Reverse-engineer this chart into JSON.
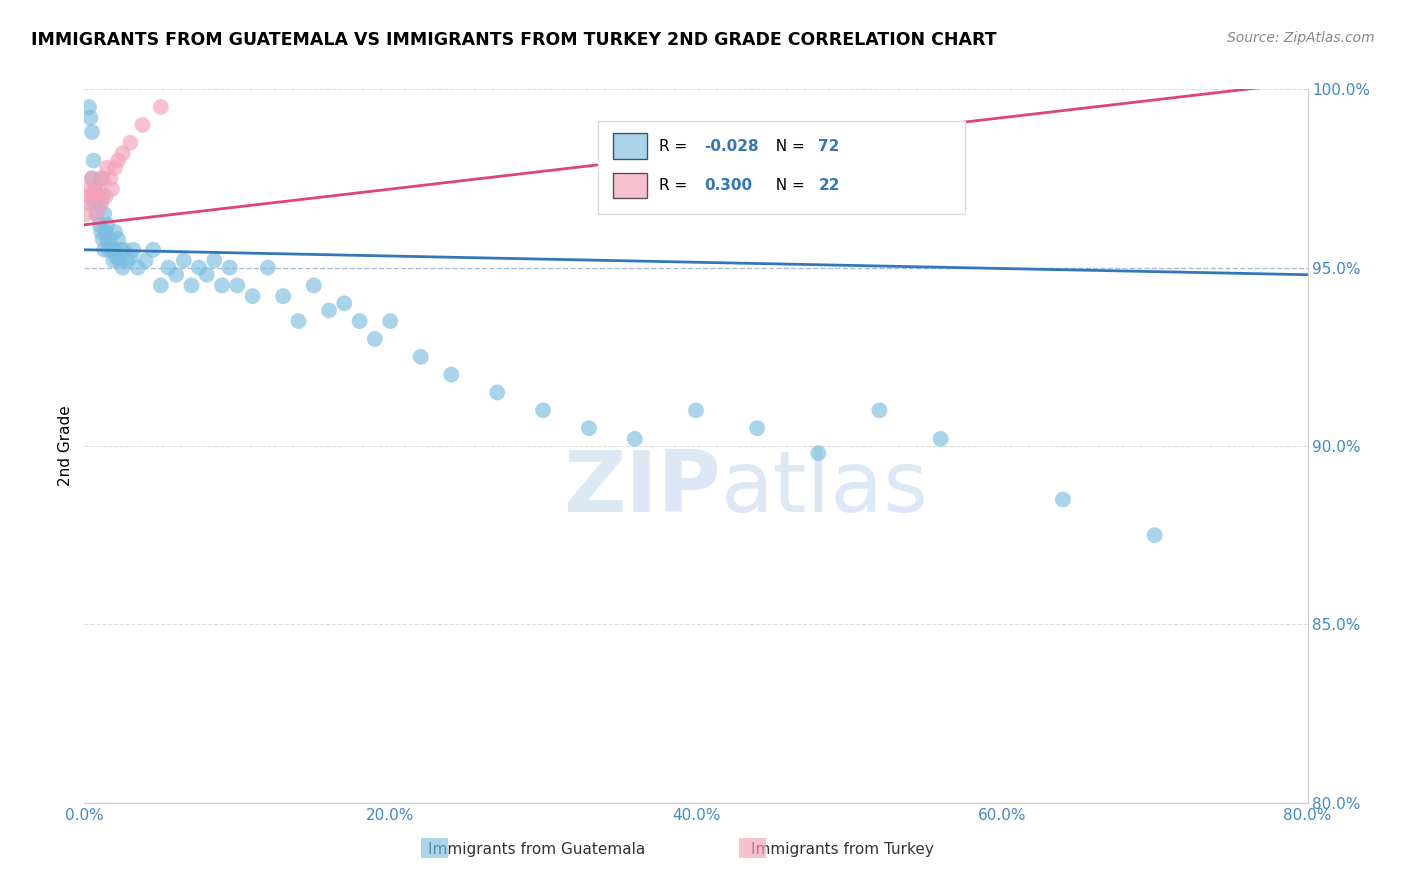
{
  "title": "IMMIGRANTS FROM GUATEMALA VS IMMIGRANTS FROM TURKEY 2ND GRADE CORRELATION CHART",
  "source": "Source: ZipAtlas.com",
  "ylabel": "2nd Grade",
  "xlim": [
    0.0,
    80.0
  ],
  "ylim": [
    80.0,
    100.0
  ],
  "xticks": [
    0.0,
    20.0,
    40.0,
    60.0,
    80.0
  ],
  "yticks": [
    80.0,
    85.0,
    90.0,
    95.0,
    100.0
  ],
  "guatemala_R": -0.028,
  "guatemala_N": 72,
  "turkey_R": 0.3,
  "turkey_N": 22,
  "guatemala_color": "#7bbde0",
  "turkey_color": "#f4a0b8",
  "guatemala_line_color": "#3377bb",
  "turkey_line_color": "#dd4477",
  "watermark_color": "#dde8f5",
  "legend_border_color": "#dddddd",
  "grid_color_95": "#aabbdd",
  "grid_color_other": "#dddddd",
  "guatemala_x": [
    0.3,
    0.4,
    0.5,
    0.5,
    0.6,
    0.6,
    0.7,
    0.8,
    0.9,
    1.0,
    1.0,
    1.1,
    1.1,
    1.2,
    1.2,
    1.3,
    1.3,
    1.4,
    1.5,
    1.5,
    1.6,
    1.7,
    1.8,
    1.9,
    2.0,
    2.0,
    2.1,
    2.2,
    2.3,
    2.4,
    2.5,
    2.6,
    2.8,
    3.0,
    3.2,
    3.5,
    4.0,
    4.5,
    5.0,
    5.5,
    6.0,
    6.5,
    7.0,
    7.5,
    8.0,
    8.5,
    9.0,
    9.5,
    10.0,
    11.0,
    12.0,
    13.0,
    14.0,
    15.0,
    16.0,
    17.0,
    18.0,
    19.0,
    20.0,
    22.0,
    24.0,
    27.0,
    30.0,
    33.0,
    36.0,
    40.0,
    44.0,
    48.0,
    52.0,
    56.0,
    64.0,
    70.0
  ],
  "guatemala_y": [
    99.5,
    99.2,
    98.8,
    97.5,
    98.0,
    96.8,
    97.2,
    96.5,
    97.0,
    96.8,
    96.2,
    97.5,
    96.0,
    95.8,
    97.0,
    96.5,
    95.5,
    96.0,
    95.8,
    96.2,
    95.5,
    95.8,
    95.5,
    95.2,
    95.5,
    96.0,
    95.3,
    95.8,
    95.2,
    95.5,
    95.0,
    95.5,
    95.2,
    95.3,
    95.5,
    95.0,
    95.2,
    95.5,
    94.5,
    95.0,
    94.8,
    95.2,
    94.5,
    95.0,
    94.8,
    95.2,
    94.5,
    95.0,
    94.5,
    94.2,
    95.0,
    94.2,
    93.5,
    94.5,
    93.8,
    94.0,
    93.5,
    93.0,
    93.5,
    92.5,
    92.0,
    91.5,
    91.0,
    90.5,
    90.2,
    91.0,
    90.5,
    89.8,
    91.0,
    90.2,
    88.5,
    87.5
  ],
  "turkey_x": [
    0.1,
    0.2,
    0.3,
    0.4,
    0.5,
    0.6,
    0.7,
    0.8,
    0.9,
    1.0,
    1.1,
    1.2,
    1.4,
    1.5,
    1.7,
    1.8,
    2.0,
    2.2,
    2.5,
    3.0,
    3.8,
    5.0
  ],
  "turkey_y": [
    96.5,
    97.2,
    97.0,
    96.8,
    97.5,
    97.0,
    97.2,
    96.5,
    97.0,
    97.2,
    96.8,
    97.5,
    97.0,
    97.8,
    97.5,
    97.2,
    97.8,
    98.0,
    98.2,
    98.5,
    99.0,
    99.5
  ],
  "guat_line_x0": 0.0,
  "guat_line_x1": 80.0,
  "guat_line_y0": 95.5,
  "guat_line_y1": 94.8,
  "turk_line_x0": 0.0,
  "turk_line_x1": 80.0,
  "turk_line_y0": 96.2,
  "turk_line_y1": 100.2
}
